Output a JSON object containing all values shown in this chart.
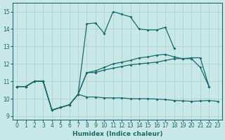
{
  "xlabel": "Humidex (Indice chaleur)",
  "bg_color": "#c8e8e8",
  "grid_color": "#a8d0d0",
  "line_color": "#1a6b6b",
  "xlim": [
    -0.5,
    23.5
  ],
  "ylim": [
    8.8,
    15.5
  ],
  "yticks": [
    9,
    10,
    11,
    12,
    13,
    14,
    15
  ],
  "xticks": [
    0,
    1,
    2,
    3,
    4,
    5,
    6,
    7,
    8,
    9,
    10,
    11,
    12,
    13,
    14,
    15,
    16,
    17,
    18,
    19,
    20,
    21,
    22,
    23
  ],
  "top_x": [
    0,
    1,
    2,
    3,
    4,
    5,
    6,
    7,
    8,
    9,
    10,
    11,
    12,
    13,
    14,
    15,
    16,
    17,
    18
  ],
  "top_y": [
    10.7,
    10.7,
    11.0,
    11.0,
    9.35,
    9.5,
    9.65,
    10.25,
    14.3,
    14.35,
    13.75,
    15.0,
    14.85,
    14.7,
    14.0,
    13.95,
    13.95,
    14.1,
    12.9
  ],
  "umid_x": [
    0,
    1,
    2,
    3,
    4,
    5,
    6,
    7,
    8,
    9,
    10,
    11,
    12,
    13,
    14,
    15,
    16,
    17,
    18,
    19,
    20,
    21,
    22
  ],
  "umid_y": [
    10.7,
    10.7,
    11.0,
    11.0,
    9.35,
    9.5,
    9.65,
    10.25,
    11.5,
    11.6,
    11.8,
    12.0,
    12.1,
    12.2,
    12.35,
    12.4,
    12.5,
    12.55,
    12.4,
    12.3,
    12.3,
    11.8,
    10.7
  ],
  "lmid_x": [
    0,
    1,
    2,
    3,
    4,
    5,
    6,
    7,
    8,
    9,
    10,
    11,
    12,
    13,
    14,
    15,
    16,
    17,
    18,
    19,
    20,
    21,
    22
  ],
  "lmid_y": [
    10.7,
    10.7,
    11.0,
    11.0,
    9.35,
    9.5,
    9.65,
    10.25,
    11.5,
    11.5,
    11.65,
    11.75,
    11.85,
    11.95,
    12.0,
    12.05,
    12.1,
    12.2,
    12.3,
    12.3,
    12.35,
    12.35,
    10.7
  ],
  "bot_x": [
    0,
    1,
    2,
    3,
    4,
    5,
    6,
    7,
    8,
    9,
    10,
    11,
    12,
    13,
    14,
    15,
    16,
    17,
    18,
    19,
    20,
    21,
    22,
    23
  ],
  "bot_y": [
    10.7,
    10.7,
    11.0,
    11.0,
    9.35,
    9.5,
    9.65,
    10.25,
    10.1,
    10.1,
    10.05,
    10.05,
    10.05,
    10.0,
    10.0,
    10.0,
    9.98,
    9.95,
    9.9,
    9.88,
    9.85,
    9.87,
    9.9,
    9.85
  ]
}
